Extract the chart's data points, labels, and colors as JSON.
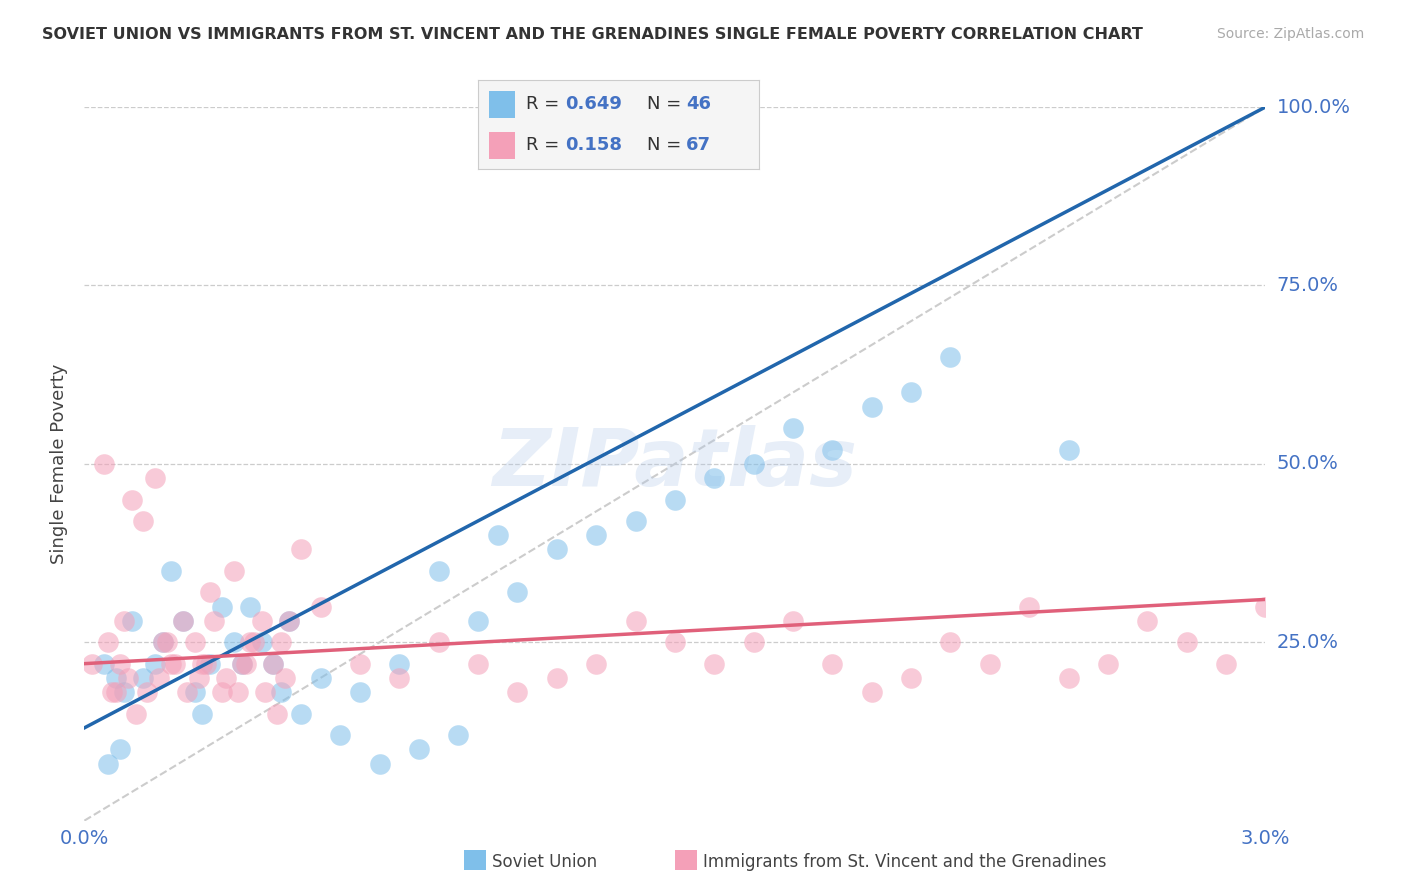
{
  "title": "SOVIET UNION VS IMMIGRANTS FROM ST. VINCENT AND THE GRENADINES SINGLE FEMALE POVERTY CORRELATION CHART",
  "source": "Source: ZipAtlas.com",
  "ylabel": "Single Female Poverty",
  "legend_label1": "Soviet Union",
  "legend_label2": "Immigrants from St. Vincent and the Grenadines",
  "r1": 0.649,
  "n1": 46,
  "r2": 0.158,
  "n2": 67,
  "blue_color": "#7fbfea",
  "pink_color": "#f4a0b8",
  "blue_line_color": "#2166ac",
  "pink_line_color": "#e0607a",
  "xlim": [
    0.0,
    0.03
  ],
  "ylim": [
    0.0,
    1.0
  ],
  "blue_line_x0": 0.0,
  "blue_line_y0": 0.13,
  "blue_line_x1": 0.03,
  "blue_line_y1": 1.0,
  "pink_line_x0": 0.0,
  "pink_line_y0": 0.22,
  "pink_line_x1": 0.03,
  "pink_line_y1": 0.31,
  "blue_dots_x": [
    0.0005,
    0.001,
    0.0015,
    0.002,
    0.0025,
    0.003,
    0.0035,
    0.004,
    0.0045,
    0.005,
    0.0008,
    0.0012,
    0.0018,
    0.0022,
    0.0028,
    0.0032,
    0.0038,
    0.0042,
    0.0048,
    0.0052,
    0.006,
    0.007,
    0.008,
    0.009,
    0.01,
    0.011,
    0.012,
    0.013,
    0.014,
    0.015,
    0.016,
    0.017,
    0.018,
    0.019,
    0.02,
    0.021,
    0.022,
    0.0006,
    0.0009,
    0.0055,
    0.0065,
    0.0075,
    0.0085,
    0.0095,
    0.0105,
    0.025
  ],
  "blue_dots_y": [
    0.22,
    0.18,
    0.2,
    0.25,
    0.28,
    0.15,
    0.3,
    0.22,
    0.25,
    0.18,
    0.2,
    0.28,
    0.22,
    0.35,
    0.18,
    0.22,
    0.25,
    0.3,
    0.22,
    0.28,
    0.2,
    0.18,
    0.22,
    0.35,
    0.28,
    0.32,
    0.38,
    0.4,
    0.42,
    0.45,
    0.48,
    0.5,
    0.55,
    0.52,
    0.58,
    0.6,
    0.65,
    0.08,
    0.1,
    0.15,
    0.12,
    0.08,
    0.1,
    0.12,
    0.4,
    0.52
  ],
  "pink_dots_x": [
    0.0002,
    0.0005,
    0.001,
    0.0012,
    0.0015,
    0.0018,
    0.002,
    0.0022,
    0.0025,
    0.0028,
    0.003,
    0.0032,
    0.0035,
    0.0038,
    0.004,
    0.0042,
    0.0045,
    0.0048,
    0.005,
    0.0052,
    0.0055,
    0.006,
    0.007,
    0.008,
    0.009,
    0.01,
    0.011,
    0.012,
    0.013,
    0.014,
    0.015,
    0.016,
    0.017,
    0.018,
    0.019,
    0.02,
    0.021,
    0.022,
    0.023,
    0.024,
    0.025,
    0.026,
    0.027,
    0.028,
    0.029,
    0.03,
    0.0008,
    0.0009,
    0.0006,
    0.0007,
    0.0011,
    0.0013,
    0.0016,
    0.0019,
    0.0021,
    0.0023,
    0.0026,
    0.0029,
    0.0031,
    0.0033,
    0.0036,
    0.0039,
    0.0041,
    0.0043,
    0.0046,
    0.0049,
    0.0051
  ],
  "pink_dots_y": [
    0.22,
    0.5,
    0.28,
    0.45,
    0.42,
    0.48,
    0.25,
    0.22,
    0.28,
    0.25,
    0.22,
    0.32,
    0.18,
    0.35,
    0.22,
    0.25,
    0.28,
    0.22,
    0.25,
    0.28,
    0.38,
    0.3,
    0.22,
    0.2,
    0.25,
    0.22,
    0.18,
    0.2,
    0.22,
    0.28,
    0.25,
    0.22,
    0.25,
    0.28,
    0.22,
    0.18,
    0.2,
    0.25,
    0.22,
    0.3,
    0.2,
    0.22,
    0.28,
    0.25,
    0.22,
    0.3,
    0.18,
    0.22,
    0.25,
    0.18,
    0.2,
    0.15,
    0.18,
    0.2,
    0.25,
    0.22,
    0.18,
    0.2,
    0.22,
    0.28,
    0.2,
    0.18,
    0.22,
    0.25,
    0.18,
    0.15,
    0.2
  ]
}
